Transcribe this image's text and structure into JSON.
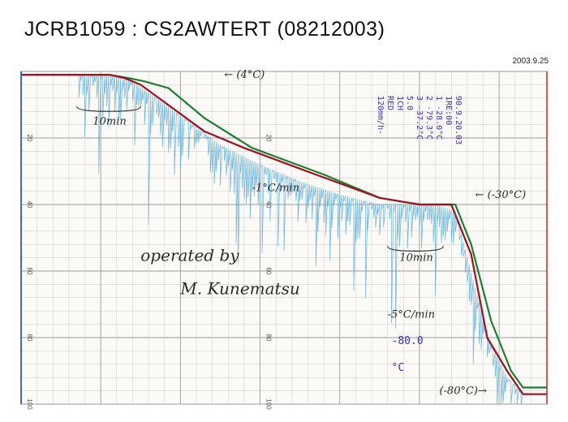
{
  "header": {
    "title": "JCRB1059 : CS2AWTERT (08212003)",
    "date": "2003.9.25"
  },
  "recorder_printout": {
    "lines": [
      "90.9.20.03",
      "1RE:00",
      "1  -28.0°C",
      "2  -79.3°C",
      "3  -37.2°C",
      "5.0",
      "1CH",
      "RED",
      "120mm/h-"
    ]
  },
  "colors": {
    "grid_minor": "#c8c8c8",
    "grid_major": "#9a9a9a",
    "blue_trace": "#5aaee0",
    "red_trace": "#a01020",
    "green_trace": "#1a8030",
    "ink": "#2a2a2a",
    "printer_ink": "#4030c0"
  },
  "chart_data": {
    "type": "line",
    "title": "",
    "xlabel": "",
    "ylabel": "",
    "yticks": [
      20,
      40,
      60,
      80,
      100
    ],
    "ylim": [
      0,
      100
    ],
    "x_unit": "min",
    "xlim": [
      0,
      132
    ],
    "series": [
      {
        "key": "red",
        "x": [
          0,
          22,
          26,
          30,
          46,
          56,
          74,
          90,
          100,
          103,
          108,
          113,
          117,
          122,
          126,
          132
        ],
        "y": [
          1,
          1,
          2,
          4,
          18,
          23,
          31,
          38,
          40,
          40,
          40,
          55,
          80,
          90,
          97,
          97
        ]
      },
      {
        "key": "green",
        "x": [
          0,
          22,
          27,
          31,
          37,
          46,
          58,
          76,
          90,
          100,
          104,
          109,
          113,
          118,
          123,
          126,
          132
        ],
        "y": [
          1,
          1,
          2,
          3,
          5,
          14,
          23,
          31,
          38,
          40,
          40,
          40,
          52,
          75,
          90,
          95,
          95
        ]
      },
      {
        "key": "blue",
        "x": [
          0,
          22,
          28,
          34,
          42,
          50,
          60,
          70,
          80,
          90,
          98,
          104,
          109,
          114,
          118,
          122,
          126,
          132
        ],
        "y": [
          1,
          1,
          3,
          8,
          15,
          22,
          28,
          33,
          37,
          40,
          40,
          40,
          42,
          65,
          82,
          92,
          97,
          97
        ]
      }
    ],
    "annotations": [
      {
        "text": "← (4°C)",
        "x": 51,
        "y": 2
      },
      {
        "text": "10min",
        "x": 18,
        "y": 16
      },
      {
        "text": "-1°C/min",
        "x": 58,
        "y": 36
      },
      {
        "text": "← (-30°C)",
        "x": 114,
        "y": 38
      },
      {
        "text": "10min",
        "x": 95,
        "y": 57
      },
      {
        "text": "operated by",
        "x": 30,
        "y": 57
      },
      {
        "text": "M. Kunematsu",
        "x": 40,
        "y": 67
      },
      {
        "text": "-5°C/min",
        "x": 92,
        "y": 74
      },
      {
        "text": "-80.0",
        "x": 93,
        "y": 82
      },
      {
        "text": "°C",
        "x": 93,
        "y": 90
      },
      {
        "text": "(-80°C)→",
        "x": 105,
        "y": 97
      }
    ]
  }
}
